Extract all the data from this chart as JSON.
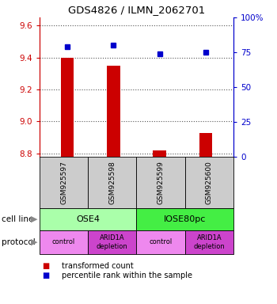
{
  "title": "GDS4826 / ILMN_2062701",
  "samples": [
    "GSM925597",
    "GSM925598",
    "GSM925599",
    "GSM925600"
  ],
  "bar_values": [
    9.4,
    9.35,
    8.82,
    8.93
  ],
  "bar_base": 8.78,
  "percentile_values": [
    79,
    80,
    74,
    75
  ],
  "ylim": [
    8.78,
    9.65
  ],
  "yticks_left": [
    8.8,
    9.0,
    9.2,
    9.4,
    9.6
  ],
  "yticks_right": [
    0,
    25,
    50,
    75,
    100
  ],
  "bar_color": "#cc0000",
  "percentile_color": "#0000cc",
  "grid_color": "#555555",
  "cell_line_labels": [
    "OSE4",
    "IOSE80pc"
  ],
  "cell_line_spans": [
    [
      0,
      2
    ],
    [
      2,
      4
    ]
  ],
  "cell_line_colors": [
    "#aaffaa",
    "#44ee44"
  ],
  "protocol_labels": [
    "control",
    "ARID1A\ndepletion",
    "control",
    "ARID1A\ndepletion"
  ],
  "protocol_colors": [
    "#ee88ee",
    "#cc44cc",
    "#ee88ee",
    "#cc44cc"
  ],
  "legend_red_label": "transformed count",
  "legend_blue_label": "percentile rank within the sample",
  "left_axis_color": "#cc0000",
  "right_axis_color": "#0000cc",
  "sample_box_color": "#cccccc",
  "cell_line_row_label": "cell line",
  "protocol_row_label": "protocol",
  "bg_color": "#ffffff"
}
